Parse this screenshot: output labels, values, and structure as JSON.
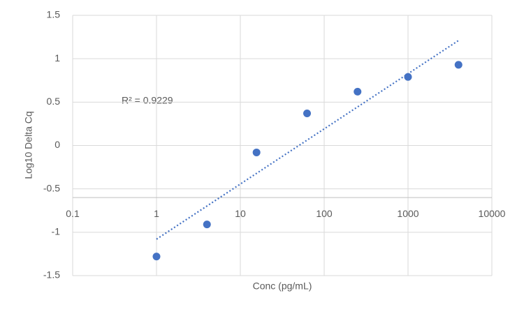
{
  "chart_data": {
    "type": "scatter",
    "x_label": "Conc (pg/mL)",
    "y_label": "Log10 Delta Cq",
    "annotation": "R² = 0.9229",
    "x_log": true,
    "series": [
      {
        "name": "Log10 Delta Cq",
        "color": "#4472c4",
        "x": [
          1,
          4,
          15.6,
          62.5,
          250,
          1000,
          4000
        ],
        "values": [
          -1.28,
          -0.91,
          -0.08,
          0.37,
          0.62,
          0.79,
          0.93
        ]
      }
    ],
    "trendline": {
      "color": "#4472c4",
      "x": [
        1,
        4000
      ],
      "values": [
        -1.08,
        1.21
      ]
    },
    "xlim": [
      0.1,
      10000
    ],
    "xticks": [
      0.1,
      1,
      10,
      100,
      1000,
      10000
    ],
    "ylim": [
      -1.5,
      1.5
    ],
    "yticks": [
      -1.5,
      -1,
      -0.5,
      0,
      0.5,
      1,
      1.5
    ],
    "x_axis_crossing": -0.6,
    "grid": true
  }
}
